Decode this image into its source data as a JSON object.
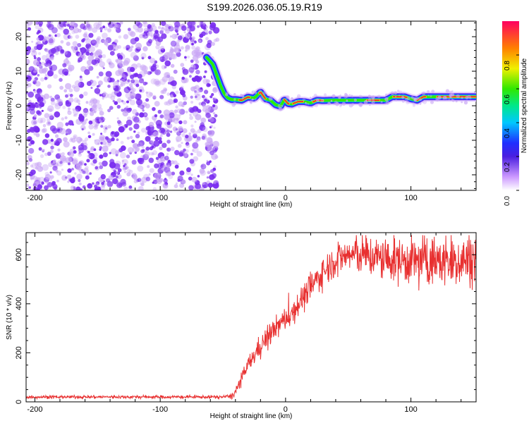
{
  "title": "S199.2026.036.05.19.R19",
  "colors": {
    "snr_line": "#e83030",
    "ridge_core": "#e83030",
    "noise": "#7a2df0",
    "noise_light": "#c9a6f5"
  },
  "chart_data": [
    {
      "type": "heatmap",
      "name": "spectrogram",
      "xlabel": "Height of straight line (km)",
      "ylabel": "Frequency (Hz)",
      "xlim": [
        -207,
        152
      ],
      "ylim": [
        -24.5,
        24.5
      ],
      "x_ticks": [
        -200,
        -100,
        0,
        100
      ],
      "x_tick_labels": [
        "-200",
        "-100",
        "0",
        "100"
      ],
      "y_ticks": [
        -20,
        -10,
        0,
        10,
        20
      ],
      "y_tick_labels": [
        "-20",
        "-10",
        "0",
        "10",
        "20"
      ],
      "noise_region_x": [
        -207,
        -55
      ],
      "ridge": {
        "x": [
          -63,
          -58,
          -55,
          -52,
          -49,
          -46,
          -43,
          -40,
          -35,
          -30,
          -25,
          -20,
          -16,
          -12,
          -8,
          -4,
          -1,
          2,
          5,
          10,
          15,
          20,
          25,
          30,
          40,
          50,
          60,
          70,
          80,
          85,
          90,
          95,
          100,
          105,
          110,
          115,
          120,
          130,
          140,
          152
        ],
        "freq": [
          14,
          12,
          9,
          6,
          3.5,
          2.2,
          1.8,
          1.8,
          1.6,
          2.5,
          2.2,
          4.0,
          2.0,
          1.6,
          0.3,
          -0.2,
          1.8,
          0.6,
          0.5,
          1.2,
          1.2,
          0.8,
          1.6,
          1.5,
          1.6,
          1.6,
          1.6,
          1.6,
          1.6,
          2.6,
          2.6,
          2.6,
          2.0,
          1.6,
          2.6,
          2.6,
          2.6,
          2.6,
          2.6,
          2.6
        ],
        "core_x_ranges": [
          [
            -37,
            -28
          ],
          [
            -21,
            -16
          ],
          [
            -1,
            3
          ],
          [
            6,
            14
          ],
          [
            22,
            30
          ],
          [
            65,
            75
          ],
          [
            86,
            97
          ],
          [
            104,
            112
          ],
          [
            121,
            152
          ]
        ]
      },
      "colorbar": {
        "label": "Normalized spectral amplitude",
        "range": [
          0,
          1
        ],
        "ticks": [
          0.0,
          0.2,
          0.4,
          0.6,
          0.8
        ],
        "tick_labels": [
          "0.0",
          "0.2",
          "0.4",
          "0.6",
          "0.8"
        ]
      }
    },
    {
      "type": "line",
      "name": "snr",
      "xlabel": "Height of straight line (km)",
      "ylabel": "SNR (10 * v/v)",
      "xlim": [
        -207,
        152
      ],
      "ylim": [
        0,
        690
      ],
      "x_ticks": [
        -200,
        -100,
        0,
        100
      ],
      "x_tick_labels": [
        "-200",
        "-100",
        "0",
        "100"
      ],
      "y_ticks": [
        0,
        200,
        400,
        600
      ],
      "y_tick_labels": [
        "0",
        "200",
        "400",
        "600"
      ],
      "trend": {
        "x": [
          -207,
          -50,
          -42,
          -38,
          -30,
          -20,
          -10,
          0,
          5,
          10,
          15,
          20,
          30,
          40,
          50,
          60,
          70,
          80,
          100,
          120,
          135,
          152
        ],
        "y": [
          20,
          20,
          25,
          60,
          150,
          230,
          290,
          340,
          360,
          400,
          430,
          470,
          530,
          580,
          600,
          600,
          590,
          580,
          575,
          575,
          575,
          585
        ]
      },
      "noise_amplitude": {
        "x": [
          -207,
          -45,
          -40,
          -20,
          0,
          20,
          40,
          60,
          100,
          152
        ],
        "amp": [
          6,
          6,
          20,
          40,
          45,
          55,
          60,
          75,
          90,
          100
        ]
      }
    }
  ]
}
